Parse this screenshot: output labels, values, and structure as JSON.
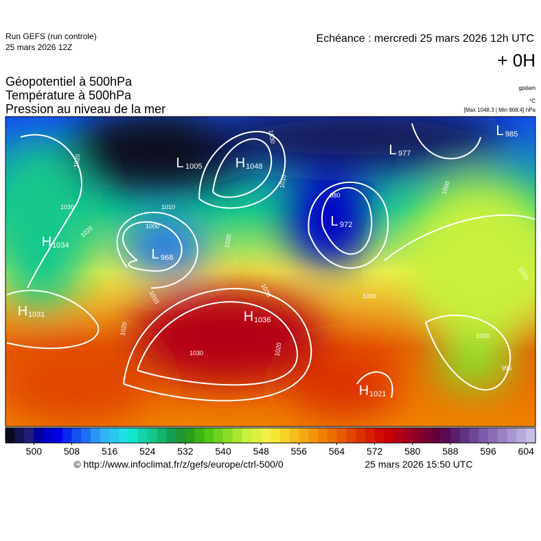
{
  "header": {
    "run": "Run GEFS (run controle)",
    "run_date": "25 mars 2026 12Z",
    "echeance": "Echéance : mercredi 25 mars 2026 12h UTC",
    "lead": "+ 0H"
  },
  "fields": [
    "Géopotentiel à 500hPa",
    "Température à 500hPa",
    "Pression au niveau de la mer"
  ],
  "units": {
    "geopotential": "gpdam",
    "temperature": "°C",
    "pressure": "[Max 1048.3 | Min 968.4] hPa"
  },
  "centers": [
    {
      "letter": "L",
      "value": 1005
    },
    {
      "letter": "H",
      "value": 1048
    },
    {
      "letter": "L",
      "value": 977
    },
    {
      "letter": "L",
      "value": 985
    },
    {
      "letter": "H",
      "value": 1034
    },
    {
      "letter": "L",
      "value": 968
    },
    {
      "letter": "L",
      "value": 972
    },
    {
      "letter": "H",
      "value": 1031
    },
    {
      "letter": "H",
      "value": 1036
    },
    {
      "letter": "H",
      "value": 1021
    }
  ],
  "isobar_labels": [
    1020,
    1030,
    1020,
    1010,
    1000,
    1030,
    1010,
    980,
    1000,
    1020,
    1010,
    1030,
    1020,
    1030,
    1020,
    996,
    1000,
    1010,
    1000
  ],
  "colorbar": {
    "min": 494,
    "max": 606,
    "ticks": [
      500,
      508,
      516,
      524,
      532,
      540,
      548,
      556,
      564,
      572,
      580,
      588,
      596,
      604
    ],
    "colors": [
      "#0a0a1e",
      "#141452",
      "#1e1e7a",
      "#0000a0",
      "#0000c8",
      "#0000e6",
      "#0a28f0",
      "#1450f0",
      "#1e6ef5",
      "#2896f5",
      "#32b4f5",
      "#28c8f0",
      "#1ee1e6",
      "#14e6c8",
      "#14d2aa",
      "#14c88c",
      "#14b46e",
      "#14a050",
      "#1e9632",
      "#28a01e",
      "#3cb414",
      "#50c814",
      "#6ed21e",
      "#8cdc28",
      "#aae632",
      "#c8f03c",
      "#dcf03c",
      "#f0f046",
      "#f5e632",
      "#f5d228",
      "#f5be1e",
      "#f5aa14",
      "#f5960a",
      "#f08200",
      "#eb6e00",
      "#e65a00",
      "#e14600",
      "#dc3200",
      "#d71e00",
      "#d20a00",
      "#c80000",
      "#b40014",
      "#a0001e",
      "#8c0028",
      "#780032",
      "#64003c",
      "#5a0a50",
      "#5a1e6e",
      "#643282",
      "#6e4696",
      "#7d5aaa",
      "#8c6eb4",
      "#9b82c3",
      "#aa96d2",
      "#b9aadc",
      "#c8bee6"
    ]
  },
  "footer": {
    "source": "© http://www.infoclimat.fr/z/gefs/europe/ctrl-500/0",
    "generated": "25 mars 2026 15:50 UTC"
  }
}
